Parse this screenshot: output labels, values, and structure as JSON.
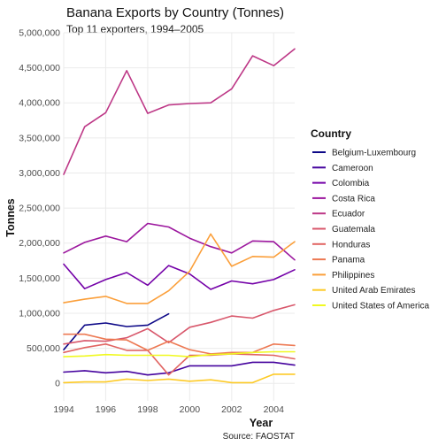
{
  "chart_data": {
    "type": "line",
    "title": "Banana Exports by Country (Tonnes)",
    "subtitle": "Top 11 exporters, 1994–2005",
    "xlabel": "Year",
    "ylabel": "Tonnes",
    "caption": "Source: FAOSTAT",
    "xlim": [
      1994,
      2005
    ],
    "ylim": [
      -250000,
      5000000
    ],
    "x_ticks": [
      "1994",
      "1996",
      "1998",
      "2000",
      "2002",
      "2004"
    ],
    "y_ticks": [
      "0",
      "500,000",
      "1,000,000",
      "1,500,000",
      "2,000,000",
      "2,500,000",
      "3,000,000",
      "3,500,000",
      "4,000,000",
      "4,500,000",
      "5,000,000"
    ],
    "grid": true,
    "legend": {
      "title": "Country",
      "position": "right"
    },
    "series": [
      {
        "name": "Belgium-Luxembourg",
        "color": "#0d0887",
        "x": [
          1994,
          1995,
          1996,
          1997,
          1998,
          1999
        ],
        "y": [
          480000,
          830000,
          860000,
          810000,
          830000,
          990000
        ]
      },
      {
        "name": "Cameroon",
        "color": "#45039e",
        "x": [
          1994,
          1995,
          1996,
          1997,
          1998,
          1999,
          2000,
          2001,
          2002,
          2003,
          2004,
          2005
        ],
        "y": [
          160000,
          180000,
          150000,
          170000,
          120000,
          150000,
          250000,
          250000,
          250000,
          300000,
          300000,
          260000
        ]
      },
      {
        "name": "Colombia",
        "color": "#7401a8",
        "x": [
          1994,
          1995,
          1996,
          1997,
          1998,
          1999,
          2000,
          2001,
          2002,
          2003,
          2004,
          2005
        ],
        "y": [
          1700000,
          1350000,
          1480000,
          1580000,
          1400000,
          1680000,
          1560000,
          1340000,
          1460000,
          1420000,
          1480000,
          1620000
        ]
      },
      {
        "name": "Costa Rica",
        "color": "#9c179e",
        "x": [
          1994,
          1995,
          1996,
          1997,
          1998,
          1999,
          2000,
          2001,
          2002,
          2003,
          2004,
          2005
        ],
        "y": [
          1860000,
          2010000,
          2100000,
          2020000,
          2280000,
          2230000,
          2070000,
          1950000,
          1860000,
          2030000,
          2020000,
          1760000
        ]
      },
      {
        "name": "Ecuador",
        "color": "#bd3786",
        "x": [
          1994,
          1995,
          1996,
          1997,
          1998,
          1999,
          2000,
          2001,
          2002,
          2003,
          2004,
          2005
        ],
        "y": [
          2980000,
          3660000,
          3860000,
          4460000,
          3850000,
          3970000,
          3990000,
          4000000,
          4200000,
          4670000,
          4530000,
          4770000
        ]
      },
      {
        "name": "Guatemala",
        "color": "#d8576b",
        "x": [
          1994,
          1995,
          1996,
          1997,
          1998,
          1999,
          2000,
          2001,
          2002,
          2003,
          2004,
          2005
        ],
        "y": [
          560000,
          610000,
          600000,
          650000,
          780000,
          580000,
          800000,
          870000,
          960000,
          930000,
          1040000,
          1120000
        ]
      },
      {
        "name": "Honduras",
        "color": "#e16462",
        "x": [
          1994,
          1995,
          1996,
          1997,
          1998,
          1999,
          2000,
          2001,
          2002,
          2003,
          2004,
          2005
        ],
        "y": [
          440000,
          510000,
          560000,
          470000,
          470000,
          120000,
          400000,
          400000,
          420000,
          410000,
          400000,
          350000
        ]
      },
      {
        "name": "Panama",
        "color": "#ed7953",
        "x": [
          1994,
          1995,
          1996,
          1997,
          1998,
          1999,
          2000,
          2001,
          2002,
          2003,
          2004,
          2005
        ],
        "y": [
          700000,
          700000,
          630000,
          620000,
          470000,
          600000,
          480000,
          420000,
          440000,
          440000,
          560000,
          540000
        ]
      },
      {
        "name": "Philippines",
        "color": "#fb9f3a",
        "x": [
          1994,
          1995,
          1996,
          1997,
          1998,
          1999,
          2000,
          2001,
          2002,
          2003,
          2004,
          2005
        ],
        "y": [
          1150000,
          1200000,
          1240000,
          1140000,
          1140000,
          1320000,
          1600000,
          2130000,
          1670000,
          1810000,
          1800000,
          2020000
        ]
      },
      {
        "name": "United Arab Emirates",
        "color": "#fdca26",
        "x": [
          1994,
          1995,
          1996,
          1997,
          1998,
          1999,
          2000,
          2001,
          2002,
          2003,
          2004,
          2005
        ],
        "y": [
          10000,
          20000,
          20000,
          60000,
          40000,
          60000,
          30000,
          50000,
          10000,
          10000,
          130000,
          130000
        ]
      },
      {
        "name": "United States of America",
        "color": "#f0f921",
        "x": [
          1994,
          1995,
          1996,
          1997,
          1998,
          1999,
          2000,
          2001,
          2002,
          2003,
          2004,
          2005
        ],
        "y": [
          380000,
          390000,
          410000,
          400000,
          400000,
          400000,
          380000,
          410000,
          420000,
          440000,
          450000,
          450000
        ]
      }
    ]
  }
}
